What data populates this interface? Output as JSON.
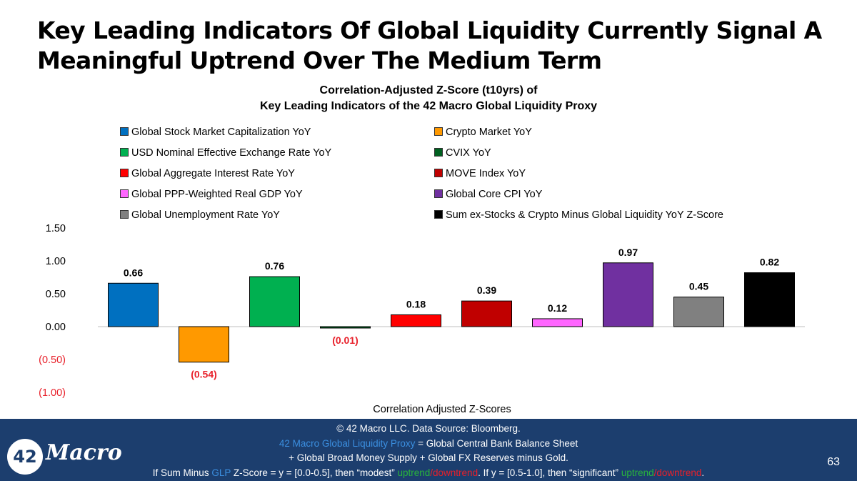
{
  "slide": {
    "title": "Key Leading Indicators Of Global Liquidity Currently Signal A Meaningful Uptrend Over The Medium Term",
    "page_number": "63"
  },
  "chart_data": {
    "type": "bar",
    "title_line1": "Correlation-Adjusted Z-Score (t10yrs) of",
    "title_line2": "Key Leading Indicators of the 42 Macro Global Liquidity Proxy",
    "xlabel": "Correlation Adjusted Z-Scores",
    "ylim": [
      -1.0,
      1.5
    ],
    "yticks": [
      1.5,
      1.0,
      0.5,
      0.0,
      -0.5,
      -1.0
    ],
    "ytick_labels": [
      "1.50",
      "1.00",
      "0.50",
      "0.00",
      "(0.50)",
      "(1.00)"
    ],
    "series": [
      {
        "name": "Global Stock Market Capitalization YoY",
        "value": 0.66,
        "label": "0.66",
        "color": "#0070c0"
      },
      {
        "name": "Crypto Market YoY",
        "value": -0.54,
        "label": "(0.54)",
        "color": "#ff9900"
      },
      {
        "name": "USD Nominal Effective Exchange Rate YoY",
        "value": 0.76,
        "label": "0.76",
        "color": "#00b050"
      },
      {
        "name": "CVIX YoY",
        "value": -0.01,
        "label": "(0.01)",
        "color": "#006020"
      },
      {
        "name": "Global Aggregate Interest Rate YoY",
        "value": 0.18,
        "label": "0.18",
        "color": "#ff0000"
      },
      {
        "name": "MOVE Index YoY",
        "value": 0.39,
        "label": "0.39",
        "color": "#c00000"
      },
      {
        "name": "Global  PPP-Weighted Real GDP YoY",
        "value": 0.12,
        "label": "0.12",
        "color": "#ff66ff"
      },
      {
        "name": "Global Core CPI YoY",
        "value": 0.97,
        "label": "0.97",
        "color": "#7030a0"
      },
      {
        "name": "Global Unemployment Rate YoY",
        "value": 0.45,
        "label": "0.45",
        "color": "#808080"
      },
      {
        "name": "Sum ex-Stocks & Crypto Minus Global Liquidity YoY Z-Score",
        "value": 0.82,
        "label": "0.82",
        "color": "#000000"
      }
    ],
    "negative_label_color": "#e8202a"
  },
  "footer": {
    "line1": "© 42 Macro LLC. Data Source: Bloomberg.",
    "line2_link": "42 Macro Global Liquidity Proxy",
    "line2_rest": " = Global Central Bank Balance Sheet",
    "line3": "+ Global Broad Money Supply + Global FX Reserves minus Gold.",
    "line4_a": "If Sum Minus ",
    "line4_glp": "GLP",
    "line4_b": " Z-Score = y = [0.0-0.5], then “modest” ",
    "line4_up1": "uptrend",
    "line4_slash1": "/",
    "line4_down1": "downtrend",
    "line4_c": ". If y = [0.5-1.0], then “significant” ",
    "line4_up2": "uptrend",
    "line4_slash2": "/",
    "line4_down2": "downtrend",
    "line4_end": ".",
    "logo_number": "42",
    "logo_word": "Macro"
  },
  "colors": {
    "footer_bg": "#1c3e6e",
    "glp_link": "#3b8fe0",
    "uptrend": "#28b43c",
    "downtrend": "#e8202a"
  }
}
